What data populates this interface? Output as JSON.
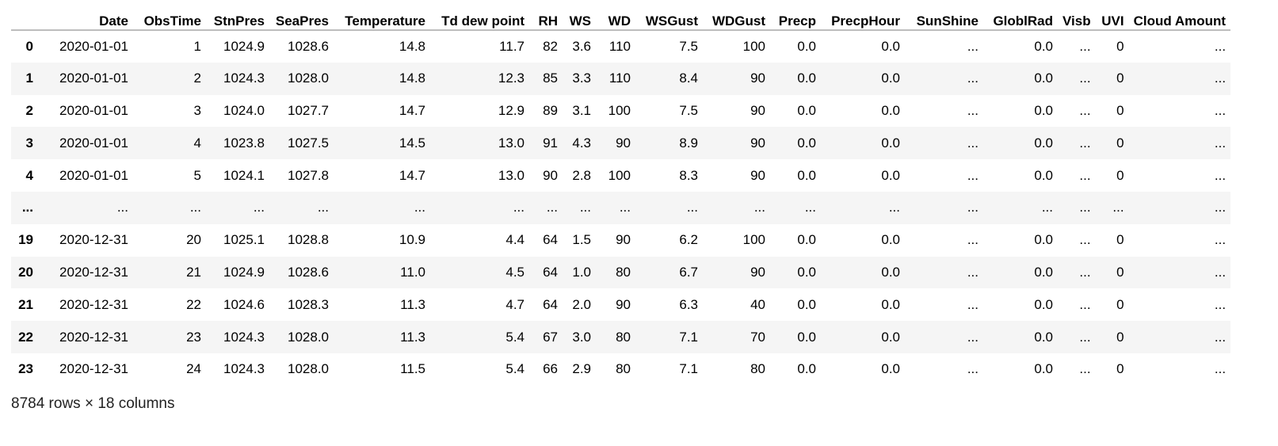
{
  "table": {
    "columns": [
      "",
      "Date",
      "ObsTime",
      "StnPres",
      "SeaPres",
      "Temperature",
      "Td dew point",
      "RH",
      "WS",
      "WD",
      "WSGust",
      "WDGust",
      "Precp",
      "PrecpHour",
      "SunShine",
      "GloblRad",
      "Visb",
      "UVI",
      "Cloud Amount"
    ],
    "rows": [
      [
        "0",
        "2020-01-01",
        "1",
        "1024.9",
        "1028.6",
        "14.8",
        "11.7",
        "82",
        "3.6",
        "110",
        "7.5",
        "100",
        "0.0",
        "0.0",
        "...",
        "0.0",
        "...",
        "0",
        "..."
      ],
      [
        "1",
        "2020-01-01",
        "2",
        "1024.3",
        "1028.0",
        "14.8",
        "12.3",
        "85",
        "3.3",
        "110",
        "8.4",
        "90",
        "0.0",
        "0.0",
        "...",
        "0.0",
        "...",
        "0",
        "..."
      ],
      [
        "2",
        "2020-01-01",
        "3",
        "1024.0",
        "1027.7",
        "14.7",
        "12.9",
        "89",
        "3.1",
        "100",
        "7.5",
        "90",
        "0.0",
        "0.0",
        "...",
        "0.0",
        "...",
        "0",
        "..."
      ],
      [
        "3",
        "2020-01-01",
        "4",
        "1023.8",
        "1027.5",
        "14.5",
        "13.0",
        "91",
        "4.3",
        "90",
        "8.9",
        "90",
        "0.0",
        "0.0",
        "...",
        "0.0",
        "...",
        "0",
        "..."
      ],
      [
        "4",
        "2020-01-01",
        "5",
        "1024.1",
        "1027.8",
        "14.7",
        "13.0",
        "90",
        "2.8",
        "100",
        "8.3",
        "90",
        "0.0",
        "0.0",
        "...",
        "0.0",
        "...",
        "0",
        "..."
      ],
      [
        "...",
        "...",
        "...",
        "...",
        "...",
        "...",
        "...",
        "...",
        "...",
        "...",
        "...",
        "...",
        "...",
        "...",
        "...",
        "...",
        "...",
        "...",
        "..."
      ],
      [
        "19",
        "2020-12-31",
        "20",
        "1025.1",
        "1028.8",
        "10.9",
        "4.4",
        "64",
        "1.5",
        "90",
        "6.2",
        "100",
        "0.0",
        "0.0",
        "...",
        "0.0",
        "...",
        "0",
        "..."
      ],
      [
        "20",
        "2020-12-31",
        "21",
        "1024.9",
        "1028.6",
        "11.0",
        "4.5",
        "64",
        "1.0",
        "80",
        "6.7",
        "90",
        "0.0",
        "0.0",
        "...",
        "0.0",
        "...",
        "0",
        "..."
      ],
      [
        "21",
        "2020-12-31",
        "22",
        "1024.6",
        "1028.3",
        "11.3",
        "4.7",
        "64",
        "2.0",
        "90",
        "6.3",
        "40",
        "0.0",
        "0.0",
        "...",
        "0.0",
        "...",
        "0",
        "..."
      ],
      [
        "22",
        "2020-12-31",
        "23",
        "1024.3",
        "1028.0",
        "11.3",
        "5.4",
        "67",
        "3.0",
        "80",
        "7.1",
        "70",
        "0.0",
        "0.0",
        "...",
        "0.0",
        "...",
        "0",
        "..."
      ],
      [
        "23",
        "2020-12-31",
        "24",
        "1024.3",
        "1028.0",
        "11.5",
        "5.4",
        "66",
        "2.9",
        "80",
        "7.1",
        "80",
        "0.0",
        "0.0",
        "...",
        "0.0",
        "...",
        "0",
        "..."
      ]
    ]
  },
  "footer": {
    "shape_text": "8784 rows × 18 columns"
  },
  "colors": {
    "stripe": "#f5f5f5",
    "header_rule": "#bdbdbd"
  }
}
